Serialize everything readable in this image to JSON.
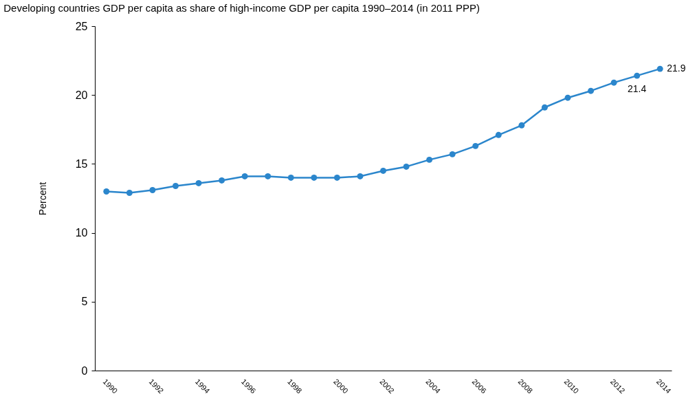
{
  "chart_data": {
    "type": "line",
    "title": "Developing countries GDP per capita as share of high-income GDP per capita 1990–2014 (in 2011 PPP)",
    "ylabel": "Percent",
    "categories": [
      "1990",
      null,
      "1992",
      null,
      "1994",
      null,
      "1996",
      null,
      "1998",
      null,
      "2000",
      null,
      "2002",
      null,
      "2004",
      null,
      "2006",
      null,
      "2008",
      null,
      "2010",
      null,
      "2012",
      null,
      "2014"
    ],
    "series": [
      {
        "color": "#2b86cc",
        "values": [
          13.0,
          12.9,
          13.1,
          13.4,
          13.6,
          13.8,
          14.1,
          14.1,
          14.0,
          14.0,
          14.0,
          14.1,
          14.5,
          14.8,
          15.3,
          15.7,
          16.3,
          17.1,
          17.8,
          19.1,
          19.8,
          20.3,
          20.9,
          21.4,
          21.9
        ],
        "value_labels": [
          null,
          null,
          null,
          null,
          null,
          null,
          null,
          null,
          null,
          null,
          null,
          null,
          null,
          null,
          null,
          null,
          null,
          null,
          null,
          null,
          null,
          null,
          null,
          "21.4",
          "21.9"
        ]
      }
    ],
    "ylim": [
      0,
      25
    ],
    "yticks": [
      0,
      5,
      10,
      15,
      20,
      25
    ],
    "grid": false,
    "marker": "circle",
    "line_style": "solid"
  }
}
